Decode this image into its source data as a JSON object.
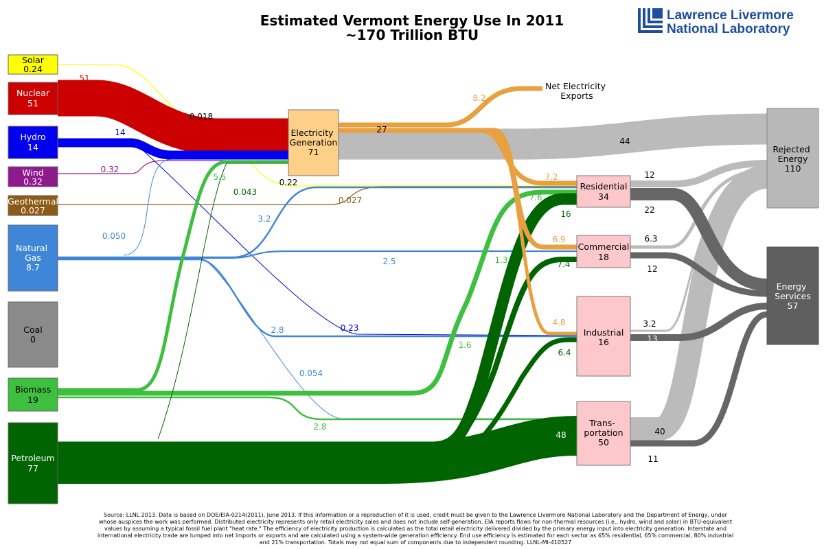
{
  "title": {
    "line1": "Estimated Vermont Energy Use In 2011",
    "line2": "~170 Trillion BTU"
  },
  "logo": {
    "line1": "Lawrence Livermore",
    "line2": "National Laboratory",
    "color": "#1f4e9c"
  },
  "sources": [
    {
      "id": "solar",
      "name": "Solar",
      "value": "0.24",
      "color": "#ffff00"
    },
    {
      "id": "nuclear",
      "name": "Nuclear",
      "value": "51",
      "color": "#cc0000"
    },
    {
      "id": "hydro",
      "name": "Hydro",
      "value": "14",
      "color": "#0000ee"
    },
    {
      "id": "wind",
      "name": "Wind",
      "value": "0.32",
      "color": "#8e1a8e"
    },
    {
      "id": "geothermal",
      "name": "Geothermal",
      "value": "0.027",
      "color": "#8b5a14"
    },
    {
      "id": "natural_gas",
      "name": "Natural Gas",
      "value": "8.7",
      "color": "#3f86d8"
    },
    {
      "id": "coal",
      "name": "Coal",
      "value": "0",
      "color": "#8a8a8a"
    },
    {
      "id": "biomass",
      "name": "Biomass",
      "value": "19",
      "color": "#3fbf3f"
    },
    {
      "id": "petroleum",
      "name": "Petroleum",
      "value": "77",
      "color": "#006400"
    }
  ],
  "hubs": {
    "electricity_generation": {
      "name": "Electricity Generation",
      "value": "71",
      "color": "#fdd089"
    },
    "residential": {
      "name": "Residential",
      "value": "34",
      "color": "#fcc8cc"
    },
    "commercial": {
      "name": "Commercial",
      "value": "18",
      "color": "#fcc8cc"
    },
    "industrial": {
      "name": "Industrial",
      "value": "16",
      "color": "#fcc8cc"
    },
    "transportation": {
      "name": "Trans- portation",
      "value": "50",
      "color": "#fcc8cc"
    },
    "rejected_energy": {
      "name": "Rejected Energy",
      "value": "110",
      "color": "#b8b8b8"
    },
    "energy_services": {
      "name": "Energy Services",
      "value": "57",
      "color": "#5f5f5f"
    }
  },
  "exports": {
    "name": "Net Electricity Exports"
  },
  "flow_labels": [
    {
      "id": "nuclear_out",
      "text": "51",
      "color": "#cc0000"
    },
    {
      "id": "hydro_out",
      "text": "14",
      "color": "#0000ee"
    },
    {
      "id": "solar_to_elec",
      "text": "0.018",
      "color": "#000000"
    },
    {
      "id": "wind_out",
      "text": "0.32",
      "color": "#8e1a8e"
    },
    {
      "id": "solar_to_res",
      "text": "0.22",
      "color": "#000000"
    },
    {
      "id": "geo_to_res",
      "text": "0.027",
      "color": "#8b5a14"
    },
    {
      "id": "biomass_to_elec",
      "text": "5.5",
      "color": "#3fbf3f"
    },
    {
      "id": "petro_to_elec",
      "text": "0.043",
      "color": "#006400"
    },
    {
      "id": "gas_to_elec",
      "text": "0.050",
      "color": "#3f86d8"
    },
    {
      "id": "gas_to_res",
      "text": "3.2",
      "color": "#3f86d8"
    },
    {
      "id": "gas_to_com",
      "text": "2.5",
      "color": "#3f86d8"
    },
    {
      "id": "gas_to_ind",
      "text": "2.8",
      "color": "#3f86d8"
    },
    {
      "id": "hydro_to_ind",
      "text": "0.23",
      "color": "#0000ee"
    },
    {
      "id": "gas_to_trans",
      "text": "0.054",
      "color": "#3f86d8"
    },
    {
      "id": "biomass_to_trans",
      "text": "2.8",
      "color": "#3fbf3f"
    },
    {
      "id": "exports",
      "text": "8.2",
      "color": "#e8a040"
    },
    {
      "id": "elec_to_res_total",
      "text": "27",
      "color": "#000000"
    },
    {
      "id": "elec_rejected",
      "text": "44",
      "color": "#000000"
    },
    {
      "id": "elec_to_res",
      "text": "7.2",
      "color": "#e8a040"
    },
    {
      "id": "biomass_to_res",
      "text": "7.6",
      "color": "#3fbf3f"
    },
    {
      "id": "petro_to_res",
      "text": "16",
      "color": "#006400"
    },
    {
      "id": "elec_to_com",
      "text": "6.9",
      "color": "#e8a040"
    },
    {
      "id": "biomass_to_com",
      "text": "1.3",
      "color": "#3fbf3f"
    },
    {
      "id": "petro_to_com",
      "text": "7.4",
      "color": "#006400"
    },
    {
      "id": "biomass_to_ind",
      "text": "1.6",
      "color": "#3fbf3f"
    },
    {
      "id": "elec_to_ind",
      "text": "4.8",
      "color": "#e8a040"
    },
    {
      "id": "petro_to_ind",
      "text": "6.4",
      "color": "#006400"
    },
    {
      "id": "petro_to_trans",
      "text": "48",
      "color": "#ffffff"
    },
    {
      "id": "res_rejected",
      "text": "12",
      "color": "#000000"
    },
    {
      "id": "res_services",
      "text": "22",
      "color": "#000000"
    },
    {
      "id": "com_rejected",
      "text": "6.3",
      "color": "#000000"
    },
    {
      "id": "com_services",
      "text": "12",
      "color": "#000000"
    },
    {
      "id": "ind_rejected",
      "text": "3.2",
      "color": "#000000"
    },
    {
      "id": "ind_services",
      "text": "13",
      "color": "#ffffff"
    },
    {
      "id": "trans_rejected",
      "text": "40",
      "color": "#000000"
    },
    {
      "id": "trans_services",
      "text": "11",
      "color": "#000000"
    }
  ],
  "footnote": "Source: LLNL 2013. Data is based on DOE/EIA-0214(2011), June 2013. If this information or a reproduction of it is used, credit must be given to the Lawrence Livermore National Laboratory and the Department of Energy, under whose auspices the work was performed. Distributed electricity represents only retail electricity sales and does not include self-generation. EIA reports flows for non-thermal resources (i.e., hydro, wind and solar) in BTU-equivalent values by assuming a typical fossil fuel plant \"heat rate.\" The efficiency of electricity production is calculated as the total retail electricity delivered divided by the primary energy input into electricity generation. Interstate and international electricity trade are lumped into net imports or exports and are calculated using a system-wide generation efficiency. End use efficiency is estimated for each sector as 65% residential, 65% commercial, 80% industrial and 21% transportation. Totals may not equal sum of components due to independent rounding. LLNL-MI-410527"
}
